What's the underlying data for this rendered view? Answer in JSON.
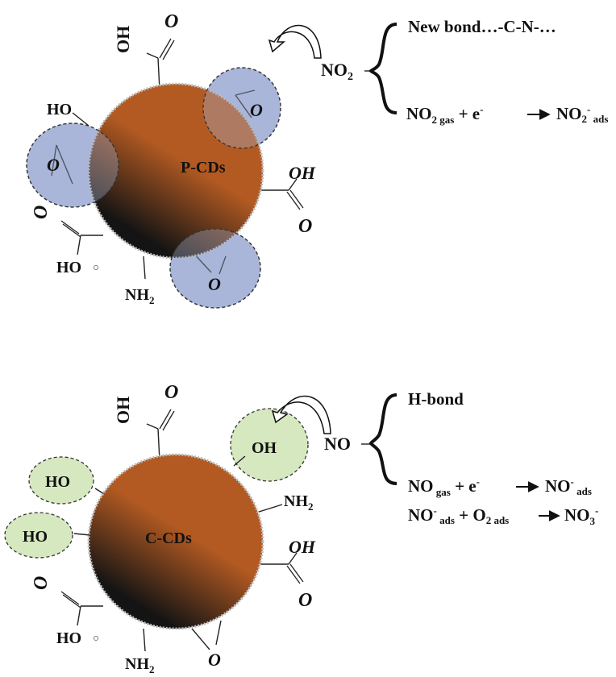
{
  "colors": {
    "particle_top": "#b35a22",
    "particle_bottom": "#141414",
    "epoxy_circle": "#a9b6d9",
    "hydroxyl_circle": "#d6e8bf",
    "circle_border": "#333333"
  },
  "top_panel": {
    "particle_label": "P-CDs",
    "groups": {
      "cooh_top": {
        "oh": "OH",
        "o": "O"
      },
      "ho_left": "HO",
      "cooh_right": {
        "oh": "OH",
        "o": "O"
      },
      "cooh_left": {
        "o": "O",
        "ho": "HO"
      },
      "nh2": {
        "main": "NH",
        "sub": "2"
      },
      "epoxy_o": "O"
    },
    "analyte": {
      "main": "NO",
      "sub": "2"
    },
    "reaction_1": "New bond…-C-N-…",
    "reaction_2": {
      "a": "NO",
      "a_sub": "2 gas",
      "plus": " + e",
      "e_sup": "-",
      "b": "NO",
      "b_sub": "2",
      "b_sup": "-",
      "b_sub2": " ads"
    }
  },
  "bottom_panel": {
    "particle_label": "C-CDs",
    "groups": {
      "cooh_top": {
        "oh": "OH",
        "o": "O"
      },
      "oh_right": "OH",
      "ho_left_1": "HO",
      "ho_left_2": "HO",
      "nh2_right": {
        "main": "NH",
        "sub": "2"
      },
      "cooh_right": {
        "oh": "OH",
        "o": "O"
      },
      "cooh_left": {
        "o": "O",
        "ho": "HO"
      },
      "nh2_bottom": {
        "main": "NH",
        "sub": "2"
      },
      "epoxy_o": "O"
    },
    "analyte": "NO",
    "reaction_1": "H-bond",
    "reaction_2": {
      "a": "NO",
      "a_sub": " gas",
      "plus": " + e",
      "e_sup": "-",
      "b": "NO",
      "b_sup": "-",
      "b_sub": " ads"
    },
    "reaction_3": {
      "a": "NO",
      "a_sup": "-",
      "a_sub": " ads",
      "plus": " + O",
      "o_sub": "2 ads",
      "b": "NO",
      "b_sub": "3",
      "b_sup": "-"
    }
  }
}
